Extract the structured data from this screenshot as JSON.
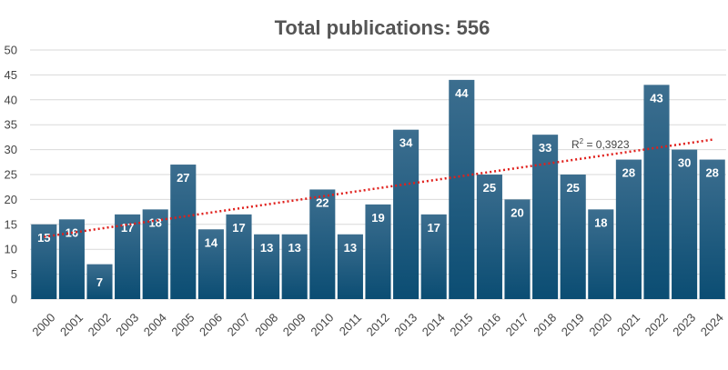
{
  "chart_data": {
    "type": "bar",
    "title": "Total publications: 556",
    "xlabel": "",
    "ylabel": "",
    "categories": [
      "2000",
      "2001",
      "2002",
      "2003",
      "2004",
      "2005",
      "2006",
      "2007",
      "2008",
      "2009",
      "2010",
      "2011",
      "2012",
      "2013",
      "2014",
      "2015",
      "2016",
      "2017",
      "2018",
      "2019",
      "2020",
      "2021",
      "2022",
      "2023",
      "2024"
    ],
    "values": [
      15,
      16,
      7,
      17,
      18,
      27,
      14,
      17,
      13,
      13,
      22,
      13,
      19,
      34,
      17,
      44,
      25,
      20,
      33,
      25,
      18,
      28,
      43,
      30,
      28
    ],
    "ylim": [
      0,
      50
    ],
    "yticks": [
      0,
      5,
      10,
      15,
      20,
      25,
      30,
      35,
      40,
      45,
      50
    ],
    "grid": true,
    "legend": "none",
    "trendline": {
      "type": "linear",
      "r2_prefix": "R",
      "r2_exponent": "2",
      "r2_value": " = 0,3923",
      "start": 12.5,
      "end": 32
    },
    "colors": {
      "bar_top": "#3c6e8f",
      "bar_bottom": "#0b4d73",
      "trendline": "#e0201c",
      "grid": "#d9d9d9"
    }
  }
}
